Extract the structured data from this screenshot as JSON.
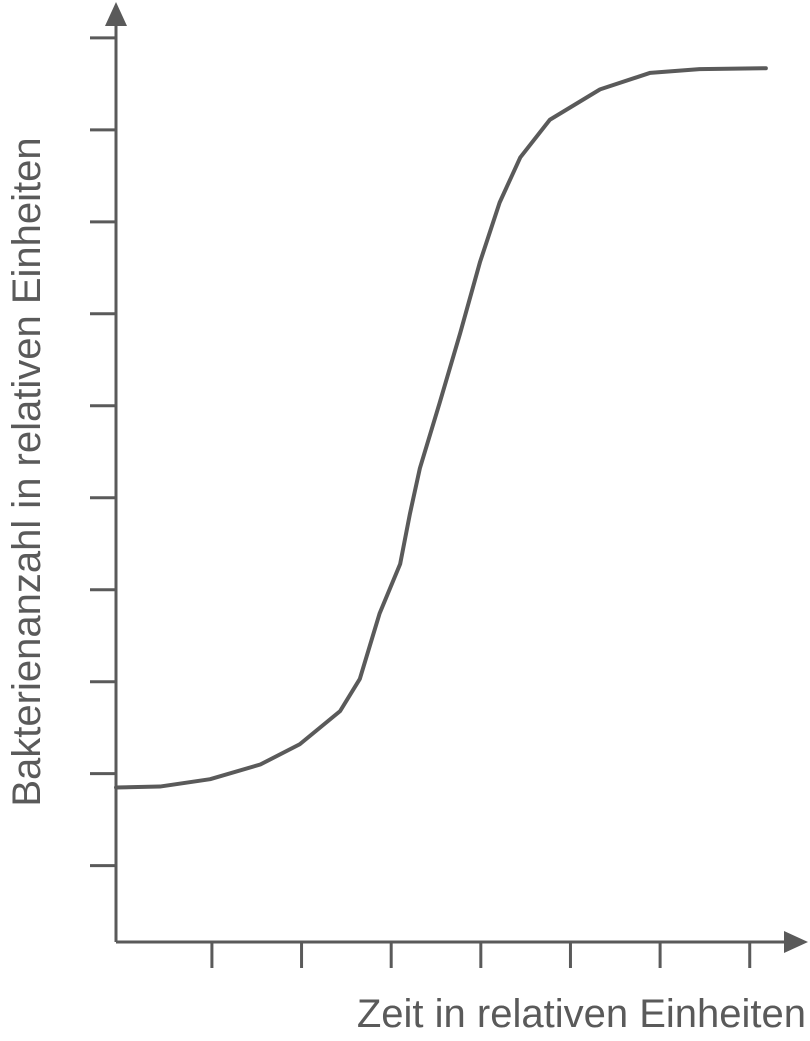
{
  "chart_data": {
    "type": "line",
    "x_label": "Zeit in relativen Einheiten",
    "y_label": "Bakterienanzahl in relativen Einheiten",
    "color": "#5a5a5a",
    "xlim": [
      -0.07,
      7.65
    ],
    "ylim": [
      0.17,
      10.39
    ],
    "xticks": [
      1,
      2,
      3,
      4,
      5,
      6,
      7
    ],
    "yticks": [
      1,
      2,
      3,
      4,
      5,
      6,
      7,
      8,
      9,
      10
    ],
    "x": [
      -0.07,
      0.42,
      0.98,
      1.54,
      1.98,
      2.43,
      2.65,
      2.87,
      3.1,
      3.21,
      3.32,
      3.54,
      3.77,
      3.99,
      4.21,
      4.44,
      4.77,
      5.33,
      5.89,
      6.44,
      7.18
    ],
    "values": [
      1.85,
      1.86,
      1.94,
      2.1,
      2.32,
      2.68,
      3.03,
      3.74,
      4.28,
      4.83,
      5.32,
      6.03,
      6.79,
      7.56,
      8.21,
      8.7,
      9.11,
      9.44,
      9.62,
      9.66,
      9.67
    ]
  }
}
